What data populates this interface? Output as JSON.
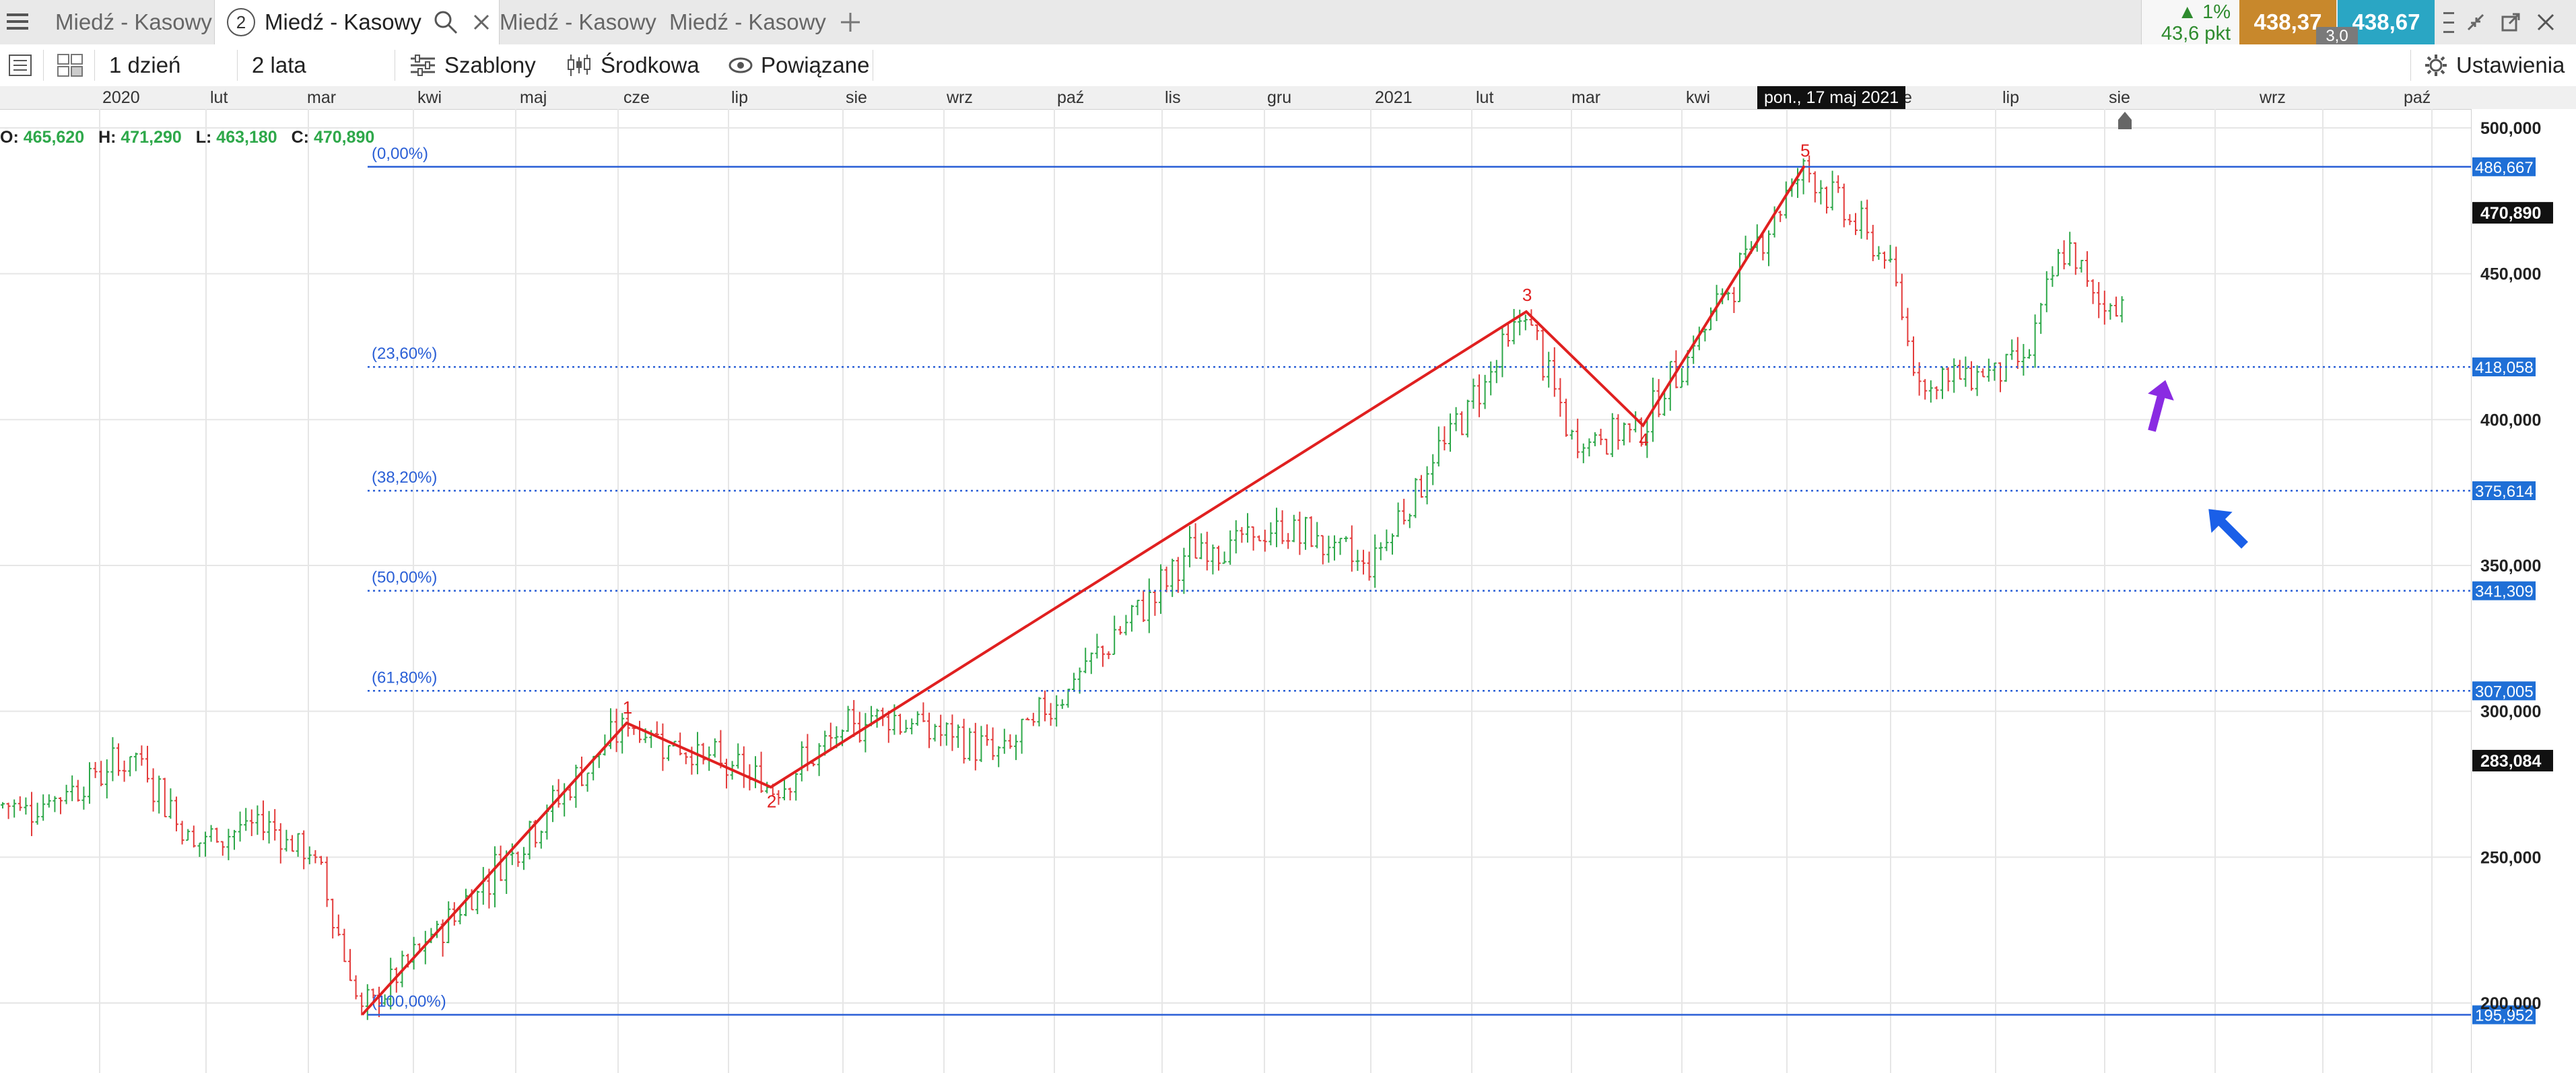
{
  "tabs": [
    {
      "label": "Miedź - Kasowy",
      "active": false
    },
    {
      "label": "Miedź - Kasowy",
      "active": true,
      "number": "2"
    },
    {
      "label": "Miedź - Kasowy",
      "active": false
    },
    {
      "label": "Miedź - Kasowy",
      "active": false
    }
  ],
  "quote": {
    "change_pct": "▲ 1%",
    "change_pts": "43,6 pkt",
    "bid": "438,37",
    "ask": "438,67",
    "spread": "3,0",
    "colors": {
      "bid": "#c8882c",
      "ask": "#2aa6c4",
      "up": "#2e8b2e"
    }
  },
  "toolbar": {
    "interval": "1 dzień",
    "range": "2 lata",
    "templates": "Szablony",
    "indicator": "Środkowa",
    "related": "Powiązane",
    "settings": "Ustawienia"
  },
  "time_axis": {
    "labels": [
      "2020",
      "lut",
      "mar",
      "kwi",
      "maj",
      "cze",
      "lip",
      "sie",
      "wrz",
      "paź",
      "lis",
      "gru",
      "2021",
      "lut",
      "mar",
      "kwi",
      "",
      "",
      "lip",
      "sie",
      "wrz",
      "paź"
    ],
    "tooltip": "pon., 17 maj 2021",
    "tooltip_partial": "e"
  },
  "ohlc": {
    "o_label": "O:",
    "o": "465,620",
    "h_label": "H:",
    "h": "471,290",
    "l_label": "L:",
    "l": "463,180",
    "c_label": "C:",
    "c": "470,890"
  },
  "price_axis": {
    "ticks": [
      "500,000",
      "450,000",
      "400,000",
      "350,000",
      "300,000",
      "250,000",
      "200,000"
    ],
    "current": "470,890",
    "marker": "283,084"
  },
  "fib_levels": [
    {
      "label": "(0,00%)",
      "value": "486,667",
      "price": 486.667
    },
    {
      "label": "(23,60%)",
      "value": "418,058",
      "price": 418.058
    },
    {
      "label": "(38,20%)",
      "value": "375,614",
      "price": 375.614
    },
    {
      "label": "(50,00%)",
      "value": "341,309",
      "price": 341.309
    },
    {
      "label": "(61,80%)",
      "value": "307,005",
      "price": 307.005
    },
    {
      "label": "(100,00%)",
      "value": "195,952",
      "price": 195.952
    }
  ],
  "waves": {
    "labels": [
      "1",
      "2",
      "3",
      "4",
      "5"
    ],
    "points": [
      {
        "date": "2020-03-23",
        "price": 196
      },
      {
        "date": "2020-06-08",
        "price": 296
      },
      {
        "date": "2020-07-20",
        "price": 274
      },
      {
        "date": "2021-02-25",
        "price": 437
      },
      {
        "date": "2021-03-31",
        "price": 398
      },
      {
        "date": "2021-05-17",
        "price": 487
      }
    ],
    "color": "#e02020"
  },
  "arrows": {
    "purple": "#8a2be2",
    "blue": "#1a5fe8"
  },
  "colors": {
    "up": "#2ea84a",
    "down": "#e33b3b",
    "fib": "#2a5fd6"
  }
}
